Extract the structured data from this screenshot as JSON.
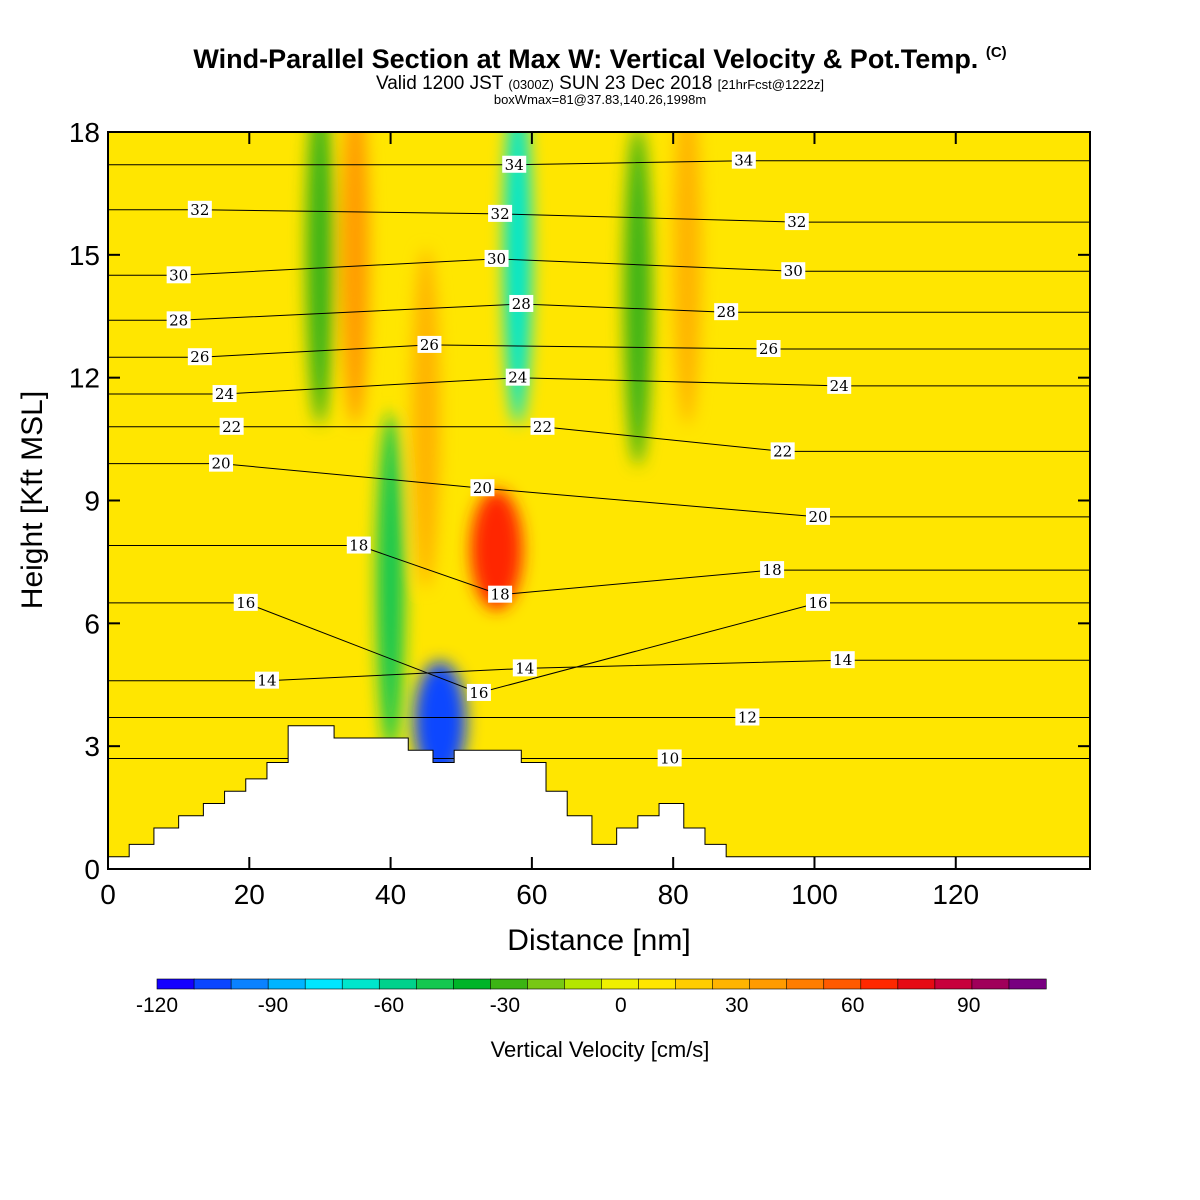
{
  "header": {
    "title_main": "Wind-Parallel Section at Max W: Vertical Velocity & Pot.Temp.",
    "title_mark": "(C)",
    "valid_prefix": "Valid 1200 JST",
    "valid_utc": "(0300Z)",
    "valid_date": "SUN 23 Dec 2018",
    "valid_fcst": "[21hrFcst@1222z]",
    "box_info": "boxWmax=81@37.83,140.26,1998m"
  },
  "colorbar": {
    "title": "Vertical Velocity [cm/s]",
    "tick_labels": [
      "-120",
      "-90",
      "-60",
      "-30",
      "0",
      "30",
      "60",
      "90"
    ],
    "tick_values": [
      -120,
      -90,
      -60,
      -30,
      0,
      30,
      60,
      90
    ],
    "range": [
      -120,
      110
    ],
    "bin_colors": [
      "#1400ff",
      "#0a46ff",
      "#0a82ff",
      "#00b4ff",
      "#00e6ff",
      "#00e6cc",
      "#00d28c",
      "#14c850",
      "#00b428",
      "#3cb414",
      "#78c814",
      "#b4e600",
      "#f0f000",
      "#ffe600",
      "#ffcd00",
      "#ffb400",
      "#ff9b00",
      "#ff7d00",
      "#ff5a00",
      "#ff2800",
      "#e60a14",
      "#c8003c",
      "#a0005a",
      "#780080"
    ]
  },
  "chart_data": {
    "type": "heatmap",
    "xlabel": "Distance [nm]",
    "ylabel": "Height [Kft MSL]",
    "xlim": [
      0,
      139
    ],
    "ylim": [
      0,
      18
    ],
    "xticks": [
      0,
      20,
      40,
      60,
      80,
      100,
      120
    ],
    "yticks": [
      0,
      3,
      6,
      9,
      12,
      15,
      18
    ],
    "x_tick_labels": [
      "0",
      "20",
      "40",
      "60",
      "80",
      "100",
      "120"
    ],
    "y_tick_labels": [
      "0",
      "3",
      "6",
      "9",
      "12",
      "15",
      "18"
    ],
    "shaded_field": "Vertical Velocity [cm/s]",
    "contour_field": "Potential Temperature [C]",
    "background_value_cms": 5,
    "velocity_features": [
      {
        "kind": "updraft_max",
        "x": 55,
        "y": 7.8,
        "value": 70
      },
      {
        "kind": "updraft_column",
        "x": 35,
        "y": 15,
        "value": 35
      },
      {
        "kind": "updraft_column",
        "x": 45,
        "y": 11,
        "value": 30
      },
      {
        "kind": "updraft_column",
        "x": 82,
        "y": 15,
        "value": 25
      },
      {
        "kind": "downdraft_min",
        "x": 47,
        "y": 3.6,
        "value": -110
      },
      {
        "kind": "downdraft_column",
        "x": 40,
        "y": 7,
        "value": -50
      },
      {
        "kind": "downdraft_column",
        "x": 58,
        "y": 15,
        "value": -65
      },
      {
        "kind": "downdraft_column",
        "x": 30,
        "y": 15,
        "value": -25
      },
      {
        "kind": "downdraft_column",
        "x": 75,
        "y": 14,
        "value": -25
      }
    ],
    "contour_labels": [
      {
        "text": "34",
        "x": 57.5,
        "y": 17.2
      },
      {
        "text": "34",
        "x": 90,
        "y": 17.3
      },
      {
        "text": "32",
        "x": 13,
        "y": 16.1
      },
      {
        "text": "32",
        "x": 55.5,
        "y": 16.0
      },
      {
        "text": "32",
        "x": 97.5,
        "y": 15.8
      },
      {
        "text": "30",
        "x": 10,
        "y": 14.5
      },
      {
        "text": "30",
        "x": 55,
        "y": 14.9
      },
      {
        "text": "30",
        "x": 97,
        "y": 14.6
      },
      {
        "text": "28",
        "x": 10,
        "y": 13.4
      },
      {
        "text": "28",
        "x": 58.5,
        "y": 13.8
      },
      {
        "text": "28",
        "x": 87.5,
        "y": 13.6
      },
      {
        "text": "26",
        "x": 13,
        "y": 12.5
      },
      {
        "text": "26",
        "x": 45.5,
        "y": 12.8
      },
      {
        "text": "26",
        "x": 93.5,
        "y": 12.7
      },
      {
        "text": "24",
        "x": 16.5,
        "y": 11.6
      },
      {
        "text": "24",
        "x": 58,
        "y": 12.0
      },
      {
        "text": "24",
        "x": 103.5,
        "y": 11.8
      },
      {
        "text": "22",
        "x": 17.5,
        "y": 10.8
      },
      {
        "text": "22",
        "x": 61.5,
        "y": 10.8
      },
      {
        "text": "22",
        "x": 95.5,
        "y": 10.2
      },
      {
        "text": "20",
        "x": 16,
        "y": 9.9
      },
      {
        "text": "20",
        "x": 53,
        "y": 9.3
      },
      {
        "text": "20",
        "x": 100.5,
        "y": 8.6
      },
      {
        "text": "18",
        "x": 35.5,
        "y": 7.9
      },
      {
        "text": "18",
        "x": 55.5,
        "y": 6.7
      },
      {
        "text": "18",
        "x": 94,
        "y": 7.3
      },
      {
        "text": "16",
        "x": 19.5,
        "y": 6.5
      },
      {
        "text": "16",
        "x": 52.5,
        "y": 4.3
      },
      {
        "text": "16",
        "x": 100.5,
        "y": 6.5
      },
      {
        "text": "14",
        "x": 22.5,
        "y": 4.6
      },
      {
        "text": "14",
        "x": 59,
        "y": 4.9
      },
      {
        "text": "14",
        "x": 104,
        "y": 5.1
      },
      {
        "text": "12",
        "x": 90.5,
        "y": 3.7
      },
      {
        "text": "10",
        "x": 79.5,
        "y": 2.7
      }
    ],
    "terrain_height_kft": [
      [
        0,
        0.3
      ],
      [
        3,
        0.6
      ],
      [
        6.5,
        1.0
      ],
      [
        10,
        1.3
      ],
      [
        13.5,
        1.6
      ],
      [
        16.5,
        1.9
      ],
      [
        19.5,
        2.2
      ],
      [
        22.5,
        2.6
      ],
      [
        25.5,
        3.5
      ],
      [
        31.5,
        3.5
      ],
      [
        32,
        3.2
      ],
      [
        42,
        3.2
      ],
      [
        42.5,
        2.9
      ],
      [
        45.5,
        2.9
      ],
      [
        46,
        2.6
      ],
      [
        48.5,
        2.6
      ],
      [
        49,
        2.9
      ],
      [
        55.5,
        2.9
      ],
      [
        58.5,
        2.6
      ],
      [
        62,
        1.9
      ],
      [
        65,
        1.3
      ],
      [
        68.5,
        0.6
      ],
      [
        71.5,
        0.6
      ],
      [
        72,
        1.0
      ],
      [
        75,
        1.3
      ],
      [
        78,
        1.6
      ],
      [
        81,
        1.6
      ],
      [
        81.5,
        1.0
      ],
      [
        84.5,
        0.6
      ],
      [
        87.5,
        0.3
      ],
      [
        139,
        0.3
      ]
    ]
  }
}
